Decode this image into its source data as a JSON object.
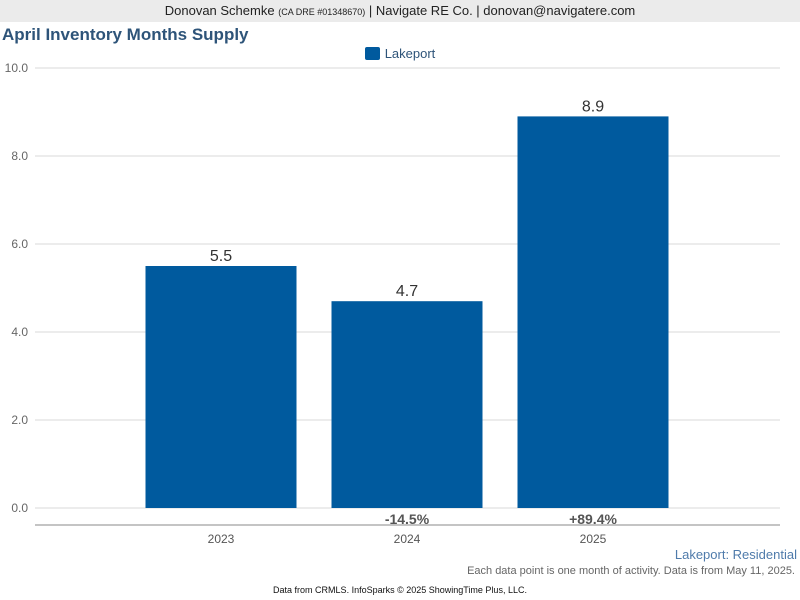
{
  "header": {
    "agent_name": "Donovan Schemke",
    "license": "(CA DRE #01348670)",
    "company": "| Navigate RE Co. | donovan@navigatere.com"
  },
  "chart_data": {
    "type": "bar",
    "title": "April Inventory Months Supply",
    "categories": [
      "2023",
      "2024",
      "2025"
    ],
    "series": [
      {
        "name": "Lakeport",
        "color": "#005a9e",
        "values": [
          5.5,
          4.7,
          8.9
        ]
      }
    ],
    "data_labels": [
      "5.5",
      "4.7",
      "8.9"
    ],
    "change_labels": [
      "",
      "-14.5%",
      "+89.4%"
    ],
    "y_ticks": [
      "0.0",
      "2.0",
      "4.0",
      "6.0",
      "8.0",
      "10.0"
    ],
    "ylim": [
      0,
      10
    ],
    "xlabel": "",
    "ylabel": "",
    "grid": true,
    "legend_position": "top-center"
  },
  "footer": {
    "source_label": "Lakeport: Residential",
    "note": "Each data point is one month of activity. Data is from May 11, 2025.",
    "credit": "Data from CRMLS. InfoSparks © 2025 ShowingTime Plus, LLC."
  }
}
